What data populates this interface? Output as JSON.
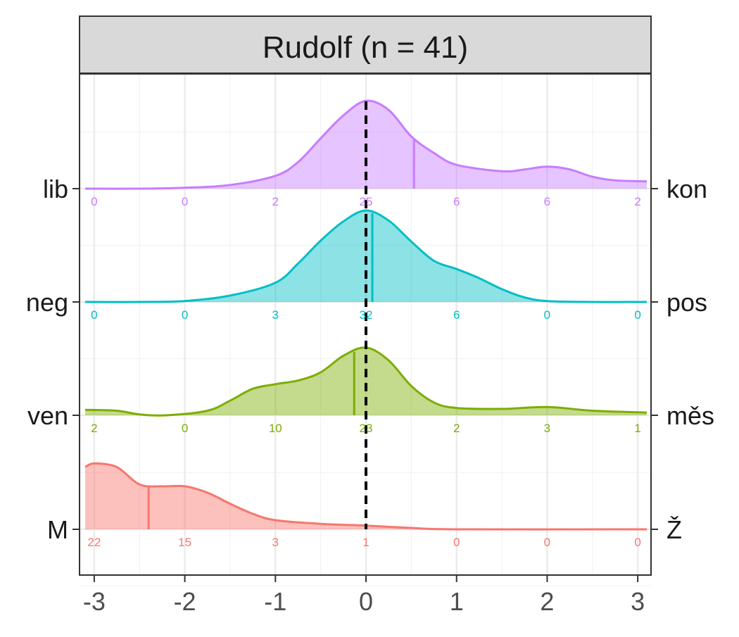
{
  "facet_title": "Rudolf (n = 41)",
  "chart_data": {
    "type": "ridgeline",
    "title": "Rudolf (n = 41)",
    "xlabel": "",
    "ylabel": "",
    "xlim": [
      -3.1,
      3.1
    ],
    "x_ticks": [
      -3,
      -2,
      -1,
      0,
      1,
      2,
      3
    ],
    "x_tick_labels": [
      "-3",
      "-2",
      "-1",
      "0",
      "1",
      "2",
      "3"
    ],
    "reference_line": {
      "x": 0,
      "style": "dashed",
      "color": "#000000"
    },
    "count_positions": [
      -3,
      -2,
      -1,
      0,
      1,
      2,
      3
    ],
    "grid": true,
    "legend": "none",
    "series": [
      {
        "left_label": "lib",
        "right_label": "kon",
        "color": "#C77CFF",
        "mean": 0.53,
        "counts": [
          "0",
          "0",
          "2",
          "25",
          "6",
          "6",
          "2"
        ],
        "density": [
          [
            -3.1,
            0.0
          ],
          [
            -2.5,
            0.0
          ],
          [
            -2.0,
            0.01
          ],
          [
            -1.5,
            0.04
          ],
          [
            -1.0,
            0.14
          ],
          [
            -0.75,
            0.29
          ],
          [
            -0.5,
            0.55
          ],
          [
            -0.25,
            0.8
          ],
          [
            0.0,
            0.96
          ],
          [
            0.25,
            0.86
          ],
          [
            0.5,
            0.57
          ],
          [
            0.75,
            0.39
          ],
          [
            1.0,
            0.26
          ],
          [
            1.5,
            0.19
          ],
          [
            1.75,
            0.21
          ],
          [
            2.0,
            0.24
          ],
          [
            2.25,
            0.21
          ],
          [
            2.5,
            0.13
          ],
          [
            2.75,
            0.09
          ],
          [
            3.1,
            0.08
          ]
        ]
      },
      {
        "left_label": "neg",
        "right_label": "pos",
        "color": "#00BFC4",
        "mean": 0.07,
        "counts": [
          "0",
          "0",
          "3",
          "32",
          "6",
          "0",
          "0"
        ],
        "density": [
          [
            -3.1,
            0.0
          ],
          [
            -2.5,
            0.0
          ],
          [
            -2.0,
            0.01
          ],
          [
            -1.5,
            0.07
          ],
          [
            -1.0,
            0.21
          ],
          [
            -0.75,
            0.42
          ],
          [
            -0.5,
            0.67
          ],
          [
            -0.25,
            0.88
          ],
          [
            0.0,
            1.0
          ],
          [
            0.25,
            0.89
          ],
          [
            0.5,
            0.66
          ],
          [
            0.75,
            0.45
          ],
          [
            1.0,
            0.36
          ],
          [
            1.25,
            0.26
          ],
          [
            1.5,
            0.14
          ],
          [
            1.75,
            0.05
          ],
          [
            2.0,
            0.01
          ],
          [
            2.5,
            0.0
          ],
          [
            3.1,
            0.0
          ]
        ]
      },
      {
        "left_label": "ven",
        "right_label": "měs",
        "color": "#7CAE00",
        "mean": -0.13,
        "counts": [
          "2",
          "0",
          "10",
          "23",
          "2",
          "3",
          "1"
        ],
        "density": [
          [
            -3.1,
            0.06
          ],
          [
            -2.75,
            0.05
          ],
          [
            -2.5,
            0.01
          ],
          [
            -2.2,
            0.0
          ],
          [
            -1.75,
            0.05
          ],
          [
            -1.5,
            0.16
          ],
          [
            -1.25,
            0.29
          ],
          [
            -1.0,
            0.34
          ],
          [
            -0.75,
            0.38
          ],
          [
            -0.5,
            0.47
          ],
          [
            -0.25,
            0.65
          ],
          [
            0.0,
            0.74
          ],
          [
            0.25,
            0.6
          ],
          [
            0.5,
            0.32
          ],
          [
            0.75,
            0.14
          ],
          [
            1.0,
            0.08
          ],
          [
            1.5,
            0.07
          ],
          [
            2.0,
            0.09
          ],
          [
            2.5,
            0.05
          ],
          [
            3.1,
            0.03
          ]
        ]
      },
      {
        "left_label": "M",
        "right_label": "Ž",
        "color": "#F8766D",
        "mean": -2.4,
        "counts": [
          "22",
          "15",
          "3",
          "1",
          "0",
          "0",
          "0"
        ],
        "density": [
          [
            -3.1,
            0.68
          ],
          [
            -3.0,
            0.72
          ],
          [
            -2.75,
            0.68
          ],
          [
            -2.5,
            0.49
          ],
          [
            -2.25,
            0.47
          ],
          [
            -2.0,
            0.47
          ],
          [
            -1.75,
            0.4
          ],
          [
            -1.5,
            0.28
          ],
          [
            -1.25,
            0.17
          ],
          [
            -1.0,
            0.1
          ],
          [
            -0.5,
            0.06
          ],
          [
            0.0,
            0.04
          ],
          [
            0.5,
            0.015
          ],
          [
            1.0,
            0.0
          ],
          [
            3.1,
            0.0
          ]
        ]
      }
    ]
  }
}
